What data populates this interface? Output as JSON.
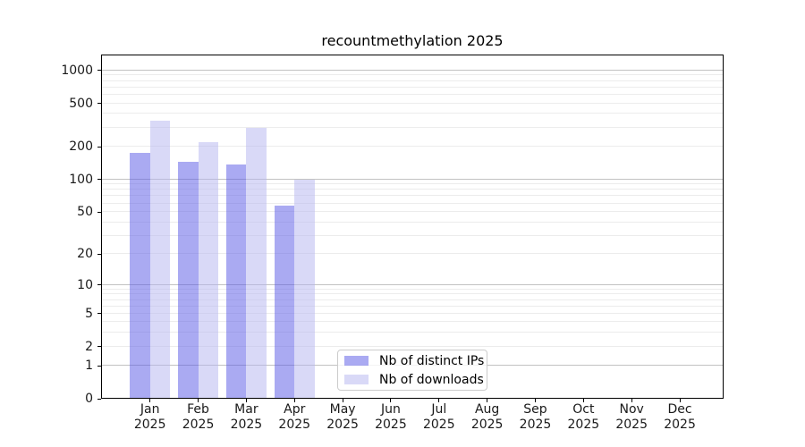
{
  "chart_data": {
    "type": "bar",
    "title": "recountmethylation 2025",
    "categories": [
      "Jan",
      "Feb",
      "Mar",
      "Apr",
      "May",
      "Jun",
      "Jul",
      "Aug",
      "Sep",
      "Oct",
      "Nov",
      "Dec"
    ],
    "category_year": "2025",
    "series": [
      {
        "name": "Nb of distinct IPs",
        "color": "#5555e6",
        "opacity": 0.5,
        "values": [
          175,
          145,
          137,
          57,
          null,
          null,
          null,
          null,
          null,
          null,
          null,
          null
        ]
      },
      {
        "name": "Nb of downloads",
        "color": "#b4b4f0",
        "opacity": 0.5,
        "values": [
          350,
          220,
          300,
          100,
          null,
          null,
          null,
          null,
          null,
          null,
          null,
          null
        ]
      }
    ],
    "yscale": "log1p",
    "ylim": [
      0,
      1400
    ],
    "yticks": [
      0,
      1,
      2,
      5,
      10,
      20,
      50,
      100,
      200,
      500,
      1000
    ],
    "major_gridline_values": [
      1,
      10,
      100,
      1000
    ],
    "minor_gridline_values": [
      2,
      3,
      4,
      5,
      6,
      7,
      8,
      9,
      20,
      30,
      40,
      50,
      60,
      70,
      80,
      90,
      200,
      300,
      400,
      500,
      600,
      700,
      800,
      900
    ],
    "grid": true,
    "xlabel": "",
    "ylabel": "",
    "legend": {
      "position": "lower center",
      "labels": [
        "Nb of distinct IPs",
        "Nb of downloads"
      ]
    },
    "colors": {
      "bar_distinct_ips": "#5555e6",
      "bar_downloads": "#b4b4f0",
      "major_grid": "#c2c2c2",
      "minor_grid": "#ececec",
      "spine": "#000000",
      "text": "#1a1a1a",
      "legend_border": "#cccccc"
    }
  }
}
